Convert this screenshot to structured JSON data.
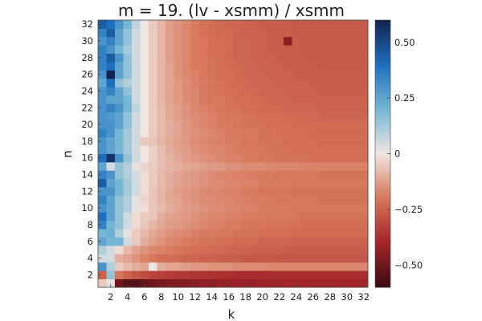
{
  "chart_data": {
    "type": "heatmap",
    "title": "m = 19. (lv - xsmm) / xsmm",
    "xlabel": "k",
    "ylabel": "n",
    "x_range": [
      1,
      32
    ],
    "y_range": [
      1,
      32
    ],
    "x_ticks": [
      "2",
      "4",
      "6",
      "8",
      "10",
      "12",
      "14",
      "16",
      "18",
      "20",
      "22",
      "24",
      "26",
      "28",
      "30",
      "32"
    ],
    "y_ticks": [
      "2",
      "4",
      "6",
      "8",
      "10",
      "12",
      "14",
      "16",
      "18",
      "20",
      "22",
      "24",
      "26",
      "28",
      "30",
      "32"
    ],
    "colorbar": {
      "range": [
        -0.6,
        0.6
      ],
      "ticks": [
        {
          "value": 0.5,
          "label": "0.50"
        },
        {
          "value": 0.25,
          "label": "0.25"
        },
        {
          "value": 0,
          "label": "0"
        },
        {
          "value": -0.25,
          "label": "−0.25"
        },
        {
          "value": -0.5,
          "label": "−0.50"
        }
      ],
      "colors": [
        "#3b0a12",
        "#a3252a",
        "#d7765a",
        "#f0e6e1",
        "#74b6d4",
        "#1f6fbf",
        "#14224d"
      ]
    },
    "grid": false,
    "rows": {
      "n1": [
        -0.05,
        0.02,
        -0.5,
        -0.55,
        -0.55,
        -0.52,
        -0.5,
        -0.48,
        -0.47,
        -0.46,
        -0.46,
        -0.45,
        -0.44,
        -0.44,
        -0.43,
        -0.43,
        -0.42,
        -0.42,
        -0.42,
        -0.41,
        -0.41,
        -0.41,
        -0.4,
        -0.4,
        -0.4,
        -0.4,
        -0.4,
        -0.4,
        -0.4,
        -0.4,
        -0.4,
        -0.4
      ],
      "n2": [
        -0.25,
        0.15,
        -0.2,
        -0.25,
        -0.28,
        -0.3,
        -0.32,
        -0.33,
        -0.34,
        -0.35,
        -0.35,
        -0.36,
        -0.36,
        -0.37,
        -0.37,
        -0.37,
        -0.38,
        -0.38,
        -0.38,
        -0.38,
        -0.38,
        -0.38,
        -0.38,
        -0.38,
        -0.38,
        -0.38,
        -0.38,
        -0.38,
        -0.38,
        -0.38,
        -0.38,
        -0.38
      ],
      "n3": [
        0.3,
        0.1,
        -0.05,
        -0.08,
        -0.1,
        -0.12,
        0.0,
        -0.1,
        -0.12,
        -0.12,
        -0.13,
        -0.14,
        -0.14,
        -0.15,
        -0.15,
        -0.15,
        -0.16,
        -0.16,
        -0.16,
        -0.16,
        -0.17,
        -0.17,
        -0.17,
        -0.17,
        -0.17,
        -0.17,
        -0.17,
        -0.17,
        -0.17,
        -0.17,
        -0.17,
        -0.17
      ],
      "n4": [
        0.05,
        0.05,
        -0.1,
        -0.12,
        -0.15,
        -0.18,
        -0.2,
        -0.22,
        -0.22,
        -0.23,
        -0.24,
        -0.24,
        -0.25,
        -0.25,
        -0.26,
        -0.26,
        -0.26,
        -0.27,
        -0.27,
        -0.27,
        -0.27,
        -0.28,
        -0.28,
        -0.28,
        -0.28,
        -0.28,
        -0.28,
        -0.28,
        -0.28,
        -0.28,
        -0.28,
        -0.28
      ],
      "n5": [
        0.1,
        0.05,
        -0.02,
        -0.08,
        -0.12,
        -0.15,
        -0.17,
        -0.18,
        -0.19,
        -0.2,
        -0.21,
        -0.22,
        -0.22,
        -0.23,
        -0.23,
        -0.24,
        -0.24,
        -0.24,
        -0.25,
        -0.25,
        -0.25,
        -0.25,
        -0.26,
        -0.26,
        -0.26,
        -0.26,
        -0.26,
        -0.26,
        -0.26,
        -0.26,
        -0.26,
        -0.26
      ],
      "n6": [
        0.25,
        0.2,
        0.2,
        0.05,
        -0.05,
        -0.1,
        -0.13,
        -0.15,
        -0.17,
        -0.18,
        -0.19,
        -0.2,
        -0.21,
        -0.21,
        -0.22,
        -0.22,
        -0.23,
        -0.23,
        -0.23,
        -0.24,
        -0.24,
        -0.24,
        -0.24,
        -0.25,
        -0.25,
        -0.25,
        -0.25,
        -0.25,
        -0.25,
        -0.25,
        -0.25,
        -0.25
      ],
      "n7": [
        0.2,
        0.22,
        0.1,
        0.02,
        -0.05,
        -0.08,
        -0.11,
        -0.13,
        -0.15,
        -0.16,
        -0.17,
        -0.18,
        -0.19,
        -0.19,
        -0.2,
        -0.2,
        -0.21,
        -0.21,
        -0.21,
        -0.22,
        -0.22,
        -0.22,
        -0.22,
        -0.23,
        -0.23,
        -0.23,
        -0.23,
        -0.23,
        -0.23,
        -0.23,
        -0.23,
        -0.23
      ],
      "n8": [
        0.35,
        0.2,
        0.15,
        0.05,
        -0.02,
        -0.06,
        -0.09,
        -0.11,
        -0.13,
        -0.14,
        -0.15,
        -0.16,
        -0.17,
        -0.18,
        -0.18,
        -0.19,
        -0.19,
        -0.2,
        -0.2,
        -0.2,
        -0.21,
        -0.21,
        -0.21,
        -0.21,
        -0.22,
        -0.22,
        -0.22,
        -0.22,
        -0.22,
        -0.22,
        -0.22,
        -0.22
      ],
      "n9": [
        0.4,
        0.25,
        0.15,
        0.05,
        -0.02,
        -0.05,
        -0.06,
        -0.1,
        -0.12,
        -0.13,
        -0.14,
        -0.15,
        -0.16,
        -0.17,
        -0.17,
        -0.18,
        -0.18,
        -0.19,
        -0.19,
        -0.19,
        -0.2,
        -0.2,
        -0.2,
        -0.2,
        -0.21,
        -0.21,
        -0.21,
        -0.21,
        -0.21,
        -0.21,
        -0.21,
        -0.21
      ],
      "n10": [
        0.3,
        0.25,
        0.15,
        0.1,
        0.02,
        -0.02,
        -0.06,
        -0.08,
        -0.1,
        -0.12,
        -0.13,
        -0.14,
        -0.15,
        -0.16,
        -0.16,
        -0.17,
        -0.17,
        -0.18,
        -0.18,
        -0.19,
        -0.19,
        -0.19,
        -0.19,
        -0.2,
        -0.2,
        -0.2,
        -0.2,
        -0.2,
        -0.2,
        -0.2,
        -0.2,
        -0.2
      ],
      "n11": [
        0.35,
        0.25,
        0.15,
        0.1,
        0.02,
        -0.03,
        -0.06,
        -0.09,
        -0.11,
        -0.12,
        -0.14,
        -0.15,
        -0.16,
        -0.16,
        -0.17,
        -0.17,
        -0.18,
        -0.18,
        -0.19,
        -0.19,
        -0.19,
        -0.2,
        -0.2,
        -0.2,
        -0.2,
        -0.2,
        -0.21,
        -0.21,
        -0.21,
        -0.21,
        -0.21,
        -0.21
      ],
      "n12": [
        0.3,
        0.3,
        0.2,
        0.12,
        0.05,
        -0.02,
        -0.06,
        -0.09,
        -0.11,
        -0.13,
        -0.14,
        -0.15,
        -0.16,
        -0.17,
        -0.17,
        -0.18,
        -0.18,
        -0.19,
        -0.19,
        -0.2,
        -0.2,
        -0.2,
        -0.2,
        -0.21,
        -0.21,
        -0.21,
        -0.21,
        -0.21,
        -0.21,
        -0.21,
        -0.21,
        -0.21
      ],
      "n13": [
        0.45,
        0.25,
        0.2,
        0.12,
        0.05,
        -0.02,
        -0.05,
        -0.08,
        -0.1,
        -0.12,
        -0.13,
        -0.14,
        -0.15,
        -0.16,
        -0.16,
        -0.17,
        -0.17,
        -0.18,
        -0.18,
        -0.19,
        -0.19,
        -0.19,
        -0.19,
        -0.2,
        -0.2,
        -0.2,
        -0.2,
        -0.2,
        -0.2,
        -0.2,
        -0.2,
        -0.2
      ],
      "n14": [
        0.35,
        0.3,
        0.15,
        0.1,
        0.05,
        -0.02,
        -0.05,
        -0.08,
        -0.1,
        -0.12,
        -0.13,
        -0.14,
        -0.15,
        -0.16,
        -0.17,
        -0.17,
        -0.18,
        -0.18,
        -0.19,
        -0.19,
        -0.19,
        -0.2,
        -0.2,
        -0.2,
        -0.2,
        -0.2,
        -0.21,
        -0.21,
        -0.21,
        -0.21,
        -0.21,
        -0.21
      ],
      "n15": [
        0.25,
        0.05,
        0.15,
        0.1,
        0.02,
        -0.03,
        -0.05,
        -0.07,
        -0.09,
        -0.1,
        -0.11,
        -0.12,
        -0.13,
        -0.14,
        -0.14,
        -0.15,
        -0.15,
        -0.16,
        -0.16,
        -0.16,
        -0.17,
        -0.17,
        -0.17,
        -0.17,
        -0.18,
        -0.18,
        -0.18,
        -0.18,
        -0.18,
        -0.18,
        -0.18,
        -0.18
      ],
      "n16": [
        0.4,
        0.55,
        0.3,
        0.15,
        0.05,
        0.0,
        -0.04,
        -0.07,
        -0.09,
        -0.11,
        -0.13,
        -0.14,
        -0.15,
        -0.16,
        -0.17,
        -0.18,
        -0.18,
        -0.19,
        -0.19,
        -0.2,
        -0.2,
        -0.21,
        -0.21,
        -0.21,
        -0.21,
        -0.22,
        -0.22,
        -0.22,
        -0.22,
        -0.22,
        -0.22,
        -0.22
      ],
      "n17": [
        0.3,
        0.25,
        0.2,
        0.12,
        0.05,
        0.0,
        -0.04,
        -0.07,
        -0.1,
        -0.12,
        -0.13,
        -0.15,
        -0.16,
        -0.17,
        -0.17,
        -0.18,
        -0.19,
        -0.19,
        -0.2,
        -0.2,
        -0.21,
        -0.21,
        -0.21,
        -0.22,
        -0.22,
        -0.22,
        -0.22,
        -0.22,
        -0.22,
        -0.22,
        -0.22,
        -0.22
      ],
      "n18": [
        0.3,
        0.25,
        0.2,
        0.12,
        0.05,
        -0.05,
        -0.06,
        -0.09,
        -0.11,
        -0.13,
        -0.14,
        -0.16,
        -0.17,
        -0.18,
        -0.18,
        -0.19,
        -0.19,
        -0.2,
        -0.2,
        -0.21,
        -0.21,
        -0.21,
        -0.22,
        -0.22,
        -0.22,
        -0.22,
        -0.23,
        -0.23,
        -0.23,
        -0.23,
        -0.23,
        -0.23
      ],
      "n19": [
        0.35,
        0.3,
        0.2,
        0.12,
        0.05,
        0.0,
        -0.05,
        -0.08,
        -0.1,
        -0.12,
        -0.14,
        -0.15,
        -0.16,
        -0.17,
        -0.18,
        -0.19,
        -0.19,
        -0.2,
        -0.2,
        -0.21,
        -0.21,
        -0.22,
        -0.22,
        -0.22,
        -0.22,
        -0.23,
        -0.23,
        -0.23,
        -0.23,
        -0.23,
        -0.23,
        -0.23
      ],
      "n20": [
        0.3,
        0.3,
        0.25,
        0.15,
        0.05,
        0.0,
        -0.05,
        -0.08,
        -0.1,
        -0.12,
        -0.14,
        -0.16,
        -0.17,
        -0.18,
        -0.19,
        -0.19,
        -0.2,
        -0.21,
        -0.21,
        -0.21,
        -0.22,
        -0.22,
        -0.22,
        -0.23,
        -0.23,
        -0.23,
        -0.23,
        -0.23,
        -0.23,
        -0.23,
        -0.23,
        -0.23
      ],
      "n21": [
        0.3,
        0.28,
        0.25,
        0.15,
        0.05,
        0.0,
        -0.05,
        -0.08,
        -0.11,
        -0.13,
        -0.15,
        -0.16,
        -0.17,
        -0.18,
        -0.19,
        -0.2,
        -0.2,
        -0.21,
        -0.21,
        -0.22,
        -0.22,
        -0.22,
        -0.23,
        -0.23,
        -0.23,
        -0.23,
        -0.24,
        -0.24,
        -0.24,
        -0.24,
        -0.24,
        -0.24
      ],
      "n22": [
        0.3,
        0.35,
        0.3,
        0.2,
        0.08,
        0.0,
        -0.05,
        -0.08,
        -0.11,
        -0.13,
        -0.15,
        -0.17,
        -0.18,
        -0.19,
        -0.2,
        -0.21,
        -0.21,
        -0.22,
        -0.22,
        -0.23,
        -0.23,
        -0.23,
        -0.24,
        -0.24,
        -0.24,
        -0.24,
        -0.25,
        -0.25,
        -0.25,
        -0.25,
        -0.25,
        -0.25
      ],
      "n23": [
        0.3,
        0.25,
        0.25,
        0.2,
        0.05,
        0.0,
        -0.05,
        -0.09,
        -0.12,
        -0.14,
        -0.16,
        -0.17,
        -0.19,
        -0.2,
        -0.2,
        -0.21,
        -0.22,
        -0.22,
        -0.23,
        -0.23,
        -0.24,
        -0.24,
        -0.24,
        -0.25,
        -0.25,
        -0.25,
        -0.25,
        -0.25,
        -0.25,
        -0.25,
        -0.25,
        -0.25
      ],
      "n24": [
        0.3,
        0.35,
        0.25,
        0.15,
        0.05,
        0.0,
        -0.05,
        -0.09,
        -0.12,
        -0.14,
        -0.16,
        -0.17,
        -0.19,
        -0.2,
        -0.21,
        -0.22,
        -0.22,
        -0.23,
        -0.23,
        -0.24,
        -0.24,
        -0.24,
        -0.25,
        -0.25,
        -0.25,
        -0.25,
        -0.26,
        -0.26,
        -0.26,
        -0.26,
        -0.26,
        -0.26
      ],
      "n25": [
        0.25,
        0.4,
        0.15,
        0.1,
        0.05,
        0.0,
        -0.05,
        -0.09,
        -0.12,
        -0.14,
        -0.16,
        -0.18,
        -0.19,
        -0.2,
        -0.21,
        -0.22,
        -0.23,
        -0.23,
        -0.24,
        -0.24,
        -0.24,
        -0.25,
        -0.25,
        -0.25,
        -0.25,
        -0.26,
        -0.26,
        -0.26,
        -0.26,
        -0.26,
        -0.26,
        -0.26
      ],
      "n26": [
        0.3,
        0.6,
        0.25,
        0.15,
        0.05,
        0.0,
        -0.05,
        -0.09,
        -0.12,
        -0.15,
        -0.17,
        -0.18,
        -0.2,
        -0.21,
        -0.22,
        -0.22,
        -0.23,
        -0.24,
        -0.24,
        -0.24,
        -0.25,
        -0.25,
        -0.25,
        -0.26,
        -0.26,
        -0.26,
        -0.26,
        -0.26,
        -0.26,
        -0.26,
        -0.26,
        -0.26
      ],
      "n27": [
        0.35,
        0.4,
        0.25,
        0.15,
        0.05,
        0.0,
        -0.05,
        -0.09,
        -0.12,
        -0.15,
        -0.17,
        -0.19,
        -0.2,
        -0.21,
        -0.22,
        -0.23,
        -0.23,
        -0.24,
        -0.24,
        -0.25,
        -0.25,
        -0.25,
        -0.26,
        -0.26,
        -0.26,
        -0.26,
        -0.27,
        -0.27,
        -0.27,
        -0.27,
        -0.27,
        -0.27
      ],
      "n28": [
        0.35,
        0.45,
        0.3,
        0.15,
        0.05,
        0.0,
        -0.05,
        -0.09,
        -0.13,
        -0.15,
        -0.17,
        -0.19,
        -0.2,
        -0.21,
        -0.22,
        -0.23,
        -0.24,
        -0.24,
        -0.25,
        -0.25,
        -0.25,
        -0.26,
        -0.26,
        -0.26,
        -0.26,
        -0.27,
        -0.27,
        -0.27,
        -0.27,
        -0.27,
        -0.27,
        -0.27
      ],
      "n29": [
        0.35,
        0.3,
        0.2,
        0.12,
        0.05,
        0.0,
        -0.05,
        -0.09,
        -0.13,
        -0.15,
        -0.17,
        -0.19,
        -0.2,
        -0.22,
        -0.22,
        -0.23,
        -0.24,
        -0.24,
        -0.25,
        -0.25,
        -0.26,
        -0.26,
        -0.26,
        -0.26,
        -0.27,
        -0.27,
        -0.27,
        -0.27,
        -0.27,
        -0.27,
        -0.27,
        -0.27
      ],
      "n30": [
        0.3,
        0.35,
        0.25,
        0.15,
        0.05,
        0.0,
        -0.05,
        -0.09,
        -0.13,
        -0.15,
        -0.17,
        -0.19,
        -0.2,
        -0.22,
        -0.22,
        -0.23,
        -0.24,
        -0.24,
        -0.25,
        -0.25,
        -0.26,
        -0.26,
        -0.45,
        -0.26,
        -0.27,
        -0.27,
        -0.27,
        -0.27,
        -0.27,
        -0.27,
        -0.27,
        -0.27
      ],
      "n31": [
        0.35,
        0.45,
        0.25,
        0.15,
        0.05,
        0.0,
        -0.05,
        -0.09,
        -0.13,
        -0.15,
        -0.17,
        -0.19,
        -0.21,
        -0.22,
        -0.23,
        -0.23,
        -0.24,
        -0.25,
        -0.25,
        -0.25,
        -0.26,
        -0.26,
        -0.26,
        -0.27,
        -0.27,
        -0.27,
        -0.27,
        -0.27,
        -0.27,
        -0.27,
        -0.27,
        -0.27
      ],
      "n32": [
        0.45,
        0.4,
        0.3,
        0.2,
        0.08,
        0.0,
        -0.05,
        -0.09,
        -0.13,
        -0.15,
        -0.17,
        -0.19,
        -0.21,
        -0.22,
        -0.23,
        -0.24,
        -0.24,
        -0.25,
        -0.25,
        -0.26,
        -0.26,
        -0.26,
        -0.26,
        -0.27,
        -0.27,
        -0.27,
        -0.27,
        -0.27,
        -0.27,
        -0.27,
        -0.27,
        -0.27
      ]
    }
  }
}
